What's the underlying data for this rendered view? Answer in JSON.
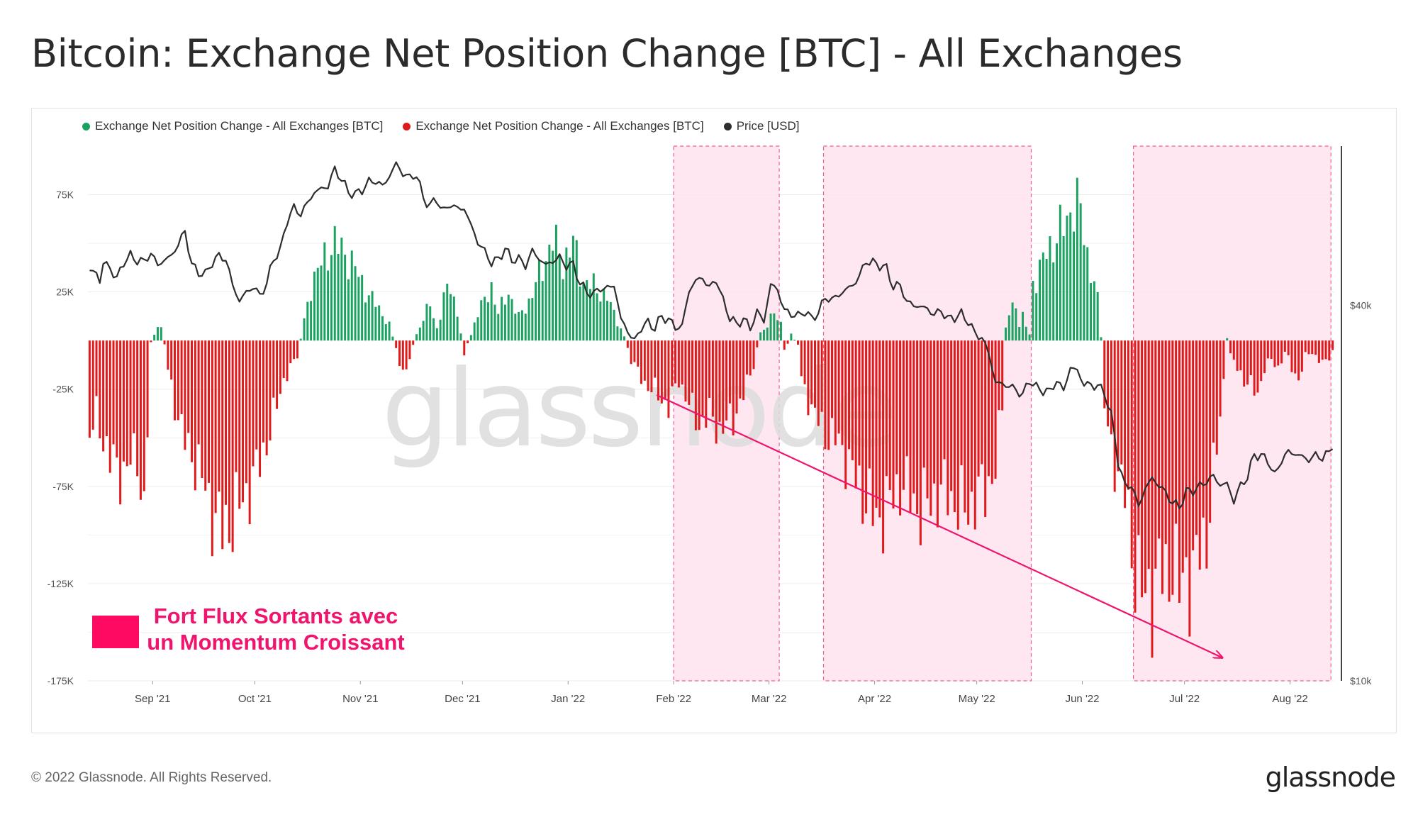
{
  "title": "Bitcoin: Exchange Net Position Change [BTC] - All Exchanges",
  "footer": {
    "copyright": "© 2022 Glassnode. All Rights Reserved.",
    "logo": "glassnode"
  },
  "watermark": "glassnode",
  "colors": {
    "inflow": "#1aa261",
    "outflow": "#e01a1a",
    "price": "#2d2d2d",
    "highlight": "#ffe3ee",
    "highlight_border": "#ee5f95",
    "annotation": "#f0146c"
  },
  "annotation": {
    "line1": "Fort Flux Sortants avec",
    "line2": "un Momentum Croissant"
  },
  "chart_data": {
    "type": "bar",
    "title": "Bitcoin: Exchange Net Position Change [BTC] - All Exchanges",
    "legend": [
      {
        "label": "Exchange Net Position Change - All Exchanges [BTC]",
        "color": "#1aa261"
      },
      {
        "label": "Exchange Net Position Change - All Exchanges [BTC]",
        "color": "#e01a1a"
      },
      {
        "label": "Price [USD]",
        "color": "#2d2d2d"
      }
    ],
    "ylim": [
      -175000,
      100000
    ],
    "yticks": [
      75000,
      25000,
      -25000,
      -75000,
      -125000,
      -175000
    ],
    "ytick_labels": [
      "75K",
      "25K",
      "-25K",
      "-75K",
      "-125K",
      "-175K"
    ],
    "y2_scale": "log",
    "y2lim": [
      10000,
      72000
    ],
    "y2ticks": [
      40000,
      10000
    ],
    "y2tick_labels": [
      "$40k",
      "$10k"
    ],
    "x_start": "2021-08-13",
    "x_end": "2022-08-14",
    "xtick_days": [
      19,
      49,
      80,
      110,
      141,
      172,
      200,
      231,
      261,
      292,
      322,
      353
    ],
    "xtick_labels": [
      "Sep '21",
      "Oct '21",
      "Nov '21",
      "Dec '21",
      "Jan '22",
      "Feb '22",
      "Mar '22",
      "Apr '22",
      "May '22",
      "Jun '22",
      "Jul '22",
      "Aug '22"
    ],
    "highlight_ranges_days": [
      [
        172,
        203
      ],
      [
        216,
        277
      ],
      [
        307,
        365
      ]
    ],
    "trend_arrow_days": {
      "from": [
        167,
        -28000
      ],
      "to": [
        333,
        -163000
      ]
    },
    "net_position_anchors": [
      [
        0,
        -50000
      ],
      [
        2,
        -38000
      ],
      [
        6,
        -62000
      ],
      [
        10,
        -68000
      ],
      [
        14,
        -58000
      ],
      [
        16,
        -91000
      ],
      [
        18,
        -1000
      ],
      [
        19,
        3000
      ],
      [
        21,
        8000
      ],
      [
        22,
        -2000
      ],
      [
        23,
        -15000
      ],
      [
        25,
        -33000
      ],
      [
        28,
        -52000
      ],
      [
        32,
        -66000
      ],
      [
        36,
        -88000
      ],
      [
        39,
        -98000
      ],
      [
        42,
        -92000
      ],
      [
        45,
        -82000
      ],
      [
        48,
        -72000
      ],
      [
        51,
        -58000
      ],
      [
        54,
        -40000
      ],
      [
        57,
        -20000
      ],
      [
        61,
        -8000
      ],
      [
        63,
        10000
      ],
      [
        65,
        28000
      ],
      [
        67,
        36000
      ],
      [
        70,
        46000
      ],
      [
        72,
        50000
      ],
      [
        75,
        45000
      ],
      [
        78,
        37000
      ],
      [
        81,
        26000
      ],
      [
        84,
        19000
      ],
      [
        88,
        8000
      ],
      [
        90,
        -4000
      ],
      [
        92,
        -20000
      ],
      [
        94,
        -8000
      ],
      [
        96,
        3000
      ],
      [
        98,
        12000
      ],
      [
        100,
        18000
      ],
      [
        102,
        6000
      ],
      [
        104,
        22000
      ],
      [
        106,
        28000
      ],
      [
        108,
        14000
      ],
      [
        110,
        -6000
      ],
      [
        112,
        3000
      ],
      [
        114,
        15000
      ],
      [
        116,
        20000
      ],
      [
        118,
        28000
      ],
      [
        120,
        14000
      ],
      [
        123,
        25000
      ],
      [
        126,
        12000
      ],
      [
        129,
        20000
      ],
      [
        133,
        38000
      ],
      [
        136,
        52000
      ],
      [
        139,
        40000
      ],
      [
        142,
        50000
      ],
      [
        145,
        30000
      ],
      [
        148,
        28000
      ],
      [
        152,
        22000
      ],
      [
        155,
        10000
      ],
      [
        157,
        2000
      ],
      [
        159,
        -10000
      ],
      [
        163,
        -22000
      ],
      [
        167,
        -28000
      ],
      [
        170,
        -34000
      ],
      [
        173,
        -20000
      ],
      [
        176,
        -33000
      ],
      [
        179,
        -43000
      ],
      [
        182,
        -38000
      ],
      [
        185,
        -46000
      ],
      [
        189,
        -40000
      ],
      [
        192,
        -28000
      ],
      [
        195,
        -12000
      ],
      [
        197,
        4000
      ],
      [
        199,
        8000
      ],
      [
        201,
        14000
      ],
      [
        203,
        9000
      ],
      [
        204,
        -6000
      ],
      [
        206,
        3000
      ],
      [
        208,
        -2000
      ],
      [
        209,
        -20000
      ],
      [
        212,
        -35000
      ],
      [
        216,
        -48000
      ],
      [
        220,
        -52000
      ],
      [
        224,
        -68000
      ],
      [
        228,
        -82000
      ],
      [
        231,
        -92000
      ],
      [
        234,
        -86000
      ],
      [
        238,
        -74000
      ],
      [
        241,
        -80000
      ],
      [
        244,
        -88000
      ],
      [
        248,
        -80000
      ],
      [
        252,
        -78000
      ],
      [
        256,
        -88000
      ],
      [
        260,
        -82000
      ],
      [
        263,
        -76000
      ],
      [
        266,
        -66000
      ],
      [
        268,
        -33000
      ],
      [
        269,
        6000
      ],
      [
        270,
        14000
      ],
      [
        272,
        20000
      ],
      [
        273,
        8000
      ],
      [
        274,
        12000
      ],
      [
        276,
        3000
      ],
      [
        277,
        30000
      ],
      [
        279,
        36000
      ],
      [
        281,
        46000
      ],
      [
        283,
        50000
      ],
      [
        285,
        56000
      ],
      [
        287,
        62000
      ],
      [
        289,
        72000
      ],
      [
        291,
        66000
      ],
      [
        293,
        44000
      ],
      [
        295,
        30000
      ],
      [
        296,
        20000
      ],
      [
        297,
        2000
      ],
      [
        298,
        -34000
      ],
      [
        300,
        -58000
      ],
      [
        302,
        -66000
      ],
      [
        304,
        -80000
      ],
      [
        306,
        -108000
      ],
      [
        308,
        -122000
      ],
      [
        310,
        -136000
      ],
      [
        312,
        -128000
      ],
      [
        314,
        -118000
      ],
      [
        316,
        -124000
      ],
      [
        318,
        -112000
      ],
      [
        320,
        -130000
      ],
      [
        322,
        -118000
      ],
      [
        324,
        -122000
      ],
      [
        326,
        -108000
      ],
      [
        328,
        -100000
      ],
      [
        330,
        -70000
      ],
      [
        332,
        -40000
      ],
      [
        333,
        -20000
      ],
      [
        334,
        1000
      ],
      [
        335,
        -8000
      ],
      [
        337,
        -14000
      ],
      [
        339,
        -20000
      ],
      [
        341,
        -24000
      ],
      [
        343,
        -27000
      ],
      [
        345,
        -14000
      ],
      [
        347,
        -10000
      ],
      [
        349,
        -14000
      ],
      [
        351,
        -6000
      ],
      [
        353,
        -14000
      ],
      [
        355,
        -20000
      ],
      [
        357,
        -8000
      ],
      [
        359,
        -6000
      ],
      [
        361,
        -10000
      ],
      [
        363,
        -12000
      ],
      [
        365,
        -5000
      ]
    ],
    "price_anchors": [
      [
        0,
        45500
      ],
      [
        2,
        45000
      ],
      [
        3,
        43800
      ],
      [
        4,
        46700
      ],
      [
        6,
        46000
      ],
      [
        8,
        44000
      ],
      [
        10,
        47000
      ],
      [
        12,
        48000
      ],
      [
        14,
        47200
      ],
      [
        16,
        47000
      ],
      [
        18,
        48500
      ],
      [
        20,
        46400
      ],
      [
        22,
        47300
      ],
      [
        24,
        48000
      ],
      [
        26,
        50100
      ],
      [
        28,
        52600
      ],
      [
        30,
        46400
      ],
      [
        32,
        45200
      ],
      [
        34,
        44800
      ],
      [
        36,
        46900
      ],
      [
        38,
        48000
      ],
      [
        40,
        47400
      ],
      [
        42,
        43100
      ],
      [
        44,
        40600
      ],
      [
        46,
        42000
      ],
      [
        48,
        42800
      ],
      [
        50,
        41500
      ],
      [
        52,
        43300
      ],
      [
        54,
        47600
      ],
      [
        56,
        48900
      ],
      [
        58,
        54800
      ],
      [
        60,
        57300
      ],
      [
        62,
        56000
      ],
      [
        64,
        58400
      ],
      [
        66,
        60700
      ],
      [
        68,
        61500
      ],
      [
        70,
        62100
      ],
      [
        72,
        66200
      ],
      [
        74,
        63600
      ],
      [
        76,
        60800
      ],
      [
        78,
        60200
      ],
      [
        80,
        61300
      ],
      [
        82,
        63100
      ],
      [
        84,
        63300
      ],
      [
        86,
        62100
      ],
      [
        88,
        64400
      ],
      [
        90,
        67500
      ],
      [
        92,
        65000
      ],
      [
        94,
        64100
      ],
      [
        96,
        64800
      ],
      [
        98,
        59300
      ],
      [
        100,
        57900
      ],
      [
        102,
        59100
      ],
      [
        104,
        56500
      ],
      [
        106,
        58200
      ],
      [
        108,
        57100
      ],
      [
        110,
        57200
      ],
      [
        112,
        53700
      ],
      [
        114,
        50500
      ],
      [
        116,
        48800
      ],
      [
        118,
        46800
      ],
      [
        120,
        47400
      ],
      [
        122,
        49300
      ],
      [
        124,
        47300
      ],
      [
        126,
        47500
      ],
      [
        128,
        46300
      ],
      [
        130,
        48900
      ],
      [
        132,
        47500
      ],
      [
        134,
        46400
      ],
      [
        136,
        47100
      ],
      [
        138,
        47700
      ],
      [
        140,
        46300
      ],
      [
        142,
        46500
      ],
      [
        144,
        43400
      ],
      [
        146,
        42000
      ],
      [
        148,
        41700
      ],
      [
        150,
        42600
      ],
      [
        152,
        42600
      ],
      [
        154,
        43100
      ],
      [
        156,
        38000
      ],
      [
        158,
        36400
      ],
      [
        160,
        35000
      ],
      [
        162,
        36900
      ],
      [
        164,
        37500
      ],
      [
        166,
        36800
      ],
      [
        168,
        38400
      ],
      [
        170,
        37900
      ],
      [
        172,
        36900
      ],
      [
        174,
        37000
      ],
      [
        176,
        42200
      ],
      [
        178,
        43800
      ],
      [
        180,
        44300
      ],
      [
        182,
        42600
      ],
      [
        184,
        44100
      ],
      [
        186,
        40600
      ],
      [
        188,
        38300
      ],
      [
        190,
        37200
      ],
      [
        192,
        38100
      ],
      [
        194,
        36700
      ],
      [
        196,
        39100
      ],
      [
        198,
        37700
      ],
      [
        200,
        43200
      ],
      [
        202,
        42400
      ],
      [
        204,
        39200
      ],
      [
        206,
        38800
      ],
      [
        208,
        38400
      ],
      [
        210,
        39200
      ],
      [
        212,
        38000
      ],
      [
        214,
        39000
      ],
      [
        216,
        41100
      ],
      [
        218,
        40900
      ],
      [
        220,
        41500
      ],
      [
        222,
        42400
      ],
      [
        224,
        43000
      ],
      [
        226,
        44500
      ],
      [
        228,
        47100
      ],
      [
        230,
        46800
      ],
      [
        232,
        46400
      ],
      [
        234,
        45800
      ],
      [
        236,
        42800
      ],
      [
        238,
        43100
      ],
      [
        240,
        40500
      ],
      [
        242,
        40000
      ],
      [
        244,
        39800
      ],
      [
        246,
        39500
      ],
      [
        248,
        38600
      ],
      [
        250,
        39300
      ],
      [
        252,
        38000
      ],
      [
        254,
        38300
      ],
      [
        256,
        38700
      ],
      [
        258,
        37700
      ],
      [
        260,
        36000
      ],
      [
        262,
        35500
      ],
      [
        264,
        33500
      ],
      [
        266,
        30100
      ],
      [
        268,
        29900
      ],
      [
        270,
        29700
      ],
      [
        272,
        29300
      ],
      [
        274,
        28700
      ],
      [
        276,
        30400
      ],
      [
        278,
        29500
      ],
      [
        280,
        29200
      ],
      [
        282,
        29100
      ],
      [
        284,
        30300
      ],
      [
        286,
        29200
      ],
      [
        288,
        31800
      ],
      [
        290,
        31400
      ],
      [
        292,
        29900
      ],
      [
        294,
        29800
      ],
      [
        296,
        29700
      ],
      [
        298,
        29000
      ],
      [
        300,
        26600
      ],
      [
        302,
        22500
      ],
      [
        304,
        20500
      ],
      [
        306,
        20600
      ],
      [
        308,
        19000
      ],
      [
        310,
        20400
      ],
      [
        312,
        21100
      ],
      [
        314,
        20600
      ],
      [
        316,
        20000
      ],
      [
        318,
        19300
      ],
      [
        320,
        19000
      ],
      [
        322,
        20100
      ],
      [
        324,
        20200
      ],
      [
        326,
        20500
      ],
      [
        328,
        20900
      ],
      [
        330,
        21300
      ],
      [
        332,
        20600
      ],
      [
        334,
        20700
      ],
      [
        336,
        19400
      ],
      [
        338,
        20600
      ],
      [
        340,
        21200
      ],
      [
        342,
        23100
      ],
      [
        344,
        22900
      ],
      [
        346,
        22600
      ],
      [
        348,
        21300
      ],
      [
        350,
        22600
      ],
      [
        352,
        23300
      ],
      [
        354,
        23100
      ],
      [
        356,
        22900
      ],
      [
        358,
        22600
      ],
      [
        360,
        23000
      ],
      [
        362,
        22800
      ],
      [
        364,
        23200
      ],
      [
        365,
        24000
      ]
    ]
  }
}
